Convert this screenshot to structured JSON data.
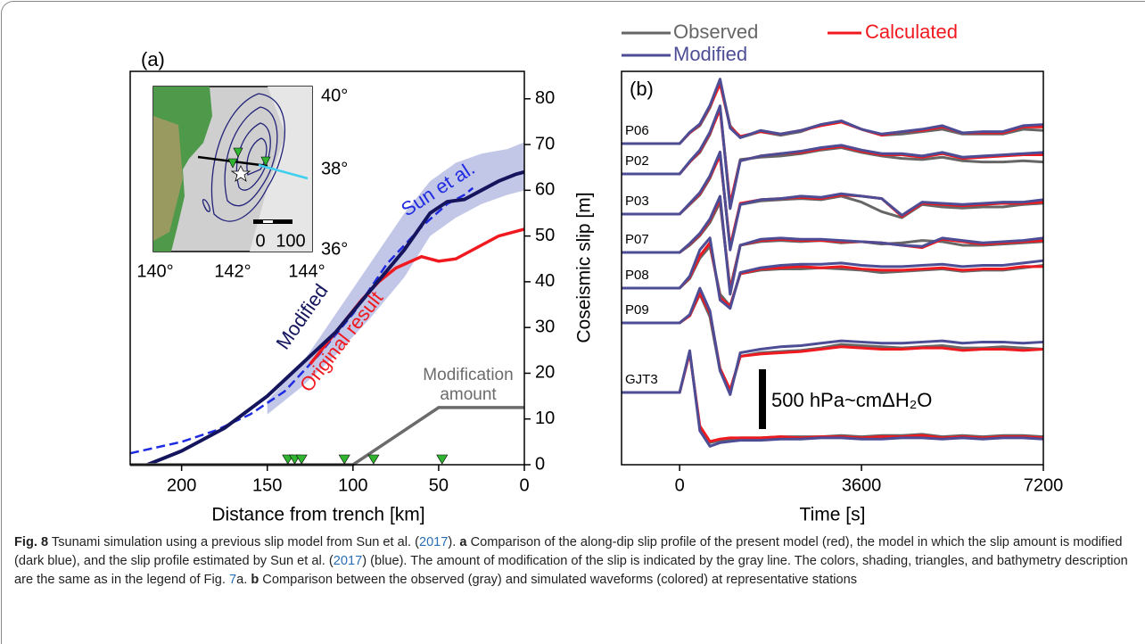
{
  "chart_data": [
    {
      "type": "line",
      "panel_label": "(a)",
      "x_label": "Distance from trench [km]",
      "y_label": "Coseismic slip [m]",
      "xlim": [
        230,
        0
      ],
      "ylim": [
        0,
        86
      ],
      "xticks": [
        200,
        150,
        100,
        50,
        0
      ],
      "yticks": [
        0,
        10,
        20,
        30,
        40,
        50,
        60,
        70,
        80
      ],
      "band": {
        "color": "#b9bde3",
        "x": [
          150,
          130,
          110,
          90,
          70,
          55,
          40,
          25,
          10,
          0
        ],
        "upper": [
          14,
          22,
          33,
          44,
          55,
          62,
          66,
          68,
          69,
          70.5
        ],
        "lower": [
          11,
          17,
          24,
          32,
          41,
          50,
          54,
          57,
          59,
          60
        ]
      },
      "series": [
        {
          "name": "Sun et al.",
          "color": "#1f2be0",
          "dashed": true,
          "x": [
            230,
            200,
            180,
            160,
            140,
            120,
            100,
            80,
            60,
            45,
            35,
            30
          ],
          "y": [
            2.5,
            5,
            7.5,
            11,
            16,
            24,
            33,
            44,
            52,
            57,
            59,
            60.5
          ]
        },
        {
          "name": "Original result",
          "color": "#f0191f",
          "x": [
            125,
            110,
            95,
            85,
            75,
            60,
            50,
            40,
            30,
            15,
            0
          ],
          "y": [
            22,
            29,
            36,
            40,
            43,
            45.5,
            44.5,
            45,
            47,
            50,
            51.5
          ]
        },
        {
          "name": "Modified",
          "color": "#15155e",
          "x": [
            220,
            200,
            175,
            150,
            130,
            110,
            90,
            70,
            55,
            45,
            35,
            25,
            15,
            5,
            0
          ],
          "y": [
            0,
            3,
            8,
            15,
            22,
            29,
            38,
            47,
            55,
            57.5,
            58,
            60,
            62,
            63.5,
            64
          ]
        },
        {
          "name": [
            "Modification",
            "amount"
          ],
          "color": "#6b6b6b",
          "x": [
            230,
            100,
            50,
            0
          ],
          "y": [
            0,
            0,
            12.5,
            12.5
          ]
        }
      ],
      "stations_x": [
        138,
        134,
        130,
        105,
        88,
        48
      ],
      "station_color": "#2fb52f"
    },
    {
      "type": "waveform",
      "panel_label": "(b)",
      "x_label": "Time [s]",
      "xlim": [
        -1150,
        7200
      ],
      "xticks": [
        0,
        3600,
        7200
      ],
      "x": [
        -1150,
        -600,
        0,
        200,
        400,
        600,
        800,
        1000,
        1200,
        1600,
        2000,
        2400,
        2800,
        3200,
        3600,
        4000,
        4400,
        4800,
        5200,
        5600,
        6000,
        6400,
        6800,
        7200
      ],
      "stations": [
        "P06",
        "P02",
        "P03",
        "P07",
        "P08",
        "P09",
        "GJT3"
      ],
      "scale_bar": {
        "value": 500,
        "label": "500 hPa~cmΔH₂O"
      },
      "series": [
        {
          "name": "Observed",
          "color": "#666666",
          "traces": [
            [
              0,
              0,
              0,
              90,
              150,
              300,
              520,
              150,
              50,
              100,
              70,
              100,
              160,
              190,
              120,
              70,
              80,
              100,
              120,
              80,
              80,
              80,
              120,
              110
            ],
            [
              0,
              0,
              0,
              100,
              180,
              330,
              560,
              -260,
              120,
              140,
              150,
              170,
              200,
              220,
              180,
              150,
              130,
              120,
              140,
              110,
              100,
              100,
              110,
              100
            ],
            [
              0,
              0,
              0,
              80,
              160,
              300,
              500,
              -280,
              80,
              110,
              120,
              130,
              120,
              150,
              100,
              20,
              -30,
              80,
              60,
              50,
              60,
              60,
              80,
              90
            ],
            [
              0,
              0,
              0,
              60,
              140,
              250,
              420,
              -300,
              60,
              90,
              100,
              90,
              100,
              80,
              90,
              70,
              80,
              100,
              90,
              60,
              60,
              70,
              80,
              90
            ],
            [
              0,
              0,
              0,
              80,
              250,
              350,
              -50,
              -150,
              120,
              150,
              160,
              160,
              170,
              160,
              150,
              130,
              140,
              150,
              160,
              140,
              150,
              150,
              170,
              190
            ],
            [
              0,
              0,
              0,
              60,
              240,
              50,
              -400,
              -580,
              -280,
              -250,
              -240,
              -230,
              -210,
              -180,
              -190,
              -200,
              -210,
              -200,
              -190,
              -210,
              -210,
              -200,
              -210,
              -220
            ],
            [
              0,
              0,
              0,
              340,
              -300,
              -420,
              -400,
              -390,
              -380,
              -380,
              -370,
              -370,
              -370,
              -360,
              -370,
              -360,
              -360,
              -350,
              -370,
              -360,
              -370,
              -360,
              -360,
              -370
            ]
          ]
        },
        {
          "name": "Calculated",
          "color": "#f0191f",
          "traces": [
            [
              0,
              0,
              0,
              90,
              160,
              310,
              500,
              140,
              60,
              100,
              80,
              110,
              150,
              180,
              120,
              70,
              100,
              110,
              140,
              90,
              90,
              90,
              140,
              140
            ],
            [
              0,
              0,
              0,
              100,
              190,
              340,
              540,
              -250,
              110,
              150,
              170,
              180,
              210,
              230,
              190,
              160,
              160,
              140,
              170,
              130,
              140,
              150,
              160,
              160
            ],
            [
              0,
              0,
              0,
              85,
              170,
              310,
              490,
              -270,
              90,
              120,
              130,
              140,
              130,
              160,
              150,
              130,
              -20,
              90,
              80,
              70,
              80,
              90,
              90,
              100
            ],
            [
              0,
              0,
              0,
              70,
              150,
              270,
              450,
              -320,
              60,
              100,
              110,
              100,
              100,
              90,
              90,
              80,
              60,
              40,
              110,
              90,
              70,
              80,
              90,
              100
            ],
            [
              0,
              0,
              0,
              90,
              270,
              380,
              -80,
              -150,
              120,
              160,
              170,
              180,
              170,
              180,
              160,
              150,
              150,
              160,
              170,
              150,
              160,
              160,
              180,
              180
            ],
            [
              0,
              0,
              0,
              60,
              250,
              80,
              -380,
              -560,
              -280,
              -260,
              -250,
              -240,
              -220,
              -200,
              -210,
              -220,
              -220,
              -210,
              -210,
              -230,
              -220,
              -220,
              -230,
              -220
            ],
            [
              0,
              0,
              0,
              330,
              -280,
              -410,
              -390,
              -380,
              -380,
              -380,
              -370,
              -380,
              -370,
              -370,
              -380,
              -370,
              -370,
              -360,
              -380,
              -370,
              -380,
              -370,
              -370,
              -380
            ]
          ]
        },
        {
          "name": "Modified",
          "color": "#4d4d96",
          "traces": [
            [
              0,
              0,
              0,
              95,
              165,
              320,
              540,
              130,
              50,
              110,
              80,
              110,
              160,
              190,
              120,
              80,
              100,
              120,
              150,
              90,
              100,
              100,
              150,
              160
            ],
            [
              0,
              0,
              0,
              105,
              200,
              350,
              570,
              -290,
              110,
              150,
              170,
              190,
              220,
              240,
              200,
              170,
              170,
              150,
              180,
              140,
              150,
              160,
              170,
              180
            ],
            [
              0,
              0,
              0,
              90,
              180,
              320,
              520,
              -300,
              80,
              120,
              130,
              150,
              140,
              170,
              150,
              130,
              -10,
              100,
              90,
              80,
              90,
              100,
              100,
              120
            ],
            [
              0,
              0,
              0,
              75,
              160,
              280,
              470,
              -350,
              60,
              110,
              120,
              110,
              110,
              100,
              90,
              80,
              60,
              50,
              120,
              100,
              80,
              90,
              100,
              120
            ],
            [
              0,
              0,
              0,
              100,
              320,
              420,
              -100,
              -170,
              130,
              170,
              190,
              200,
              200,
              210,
              190,
              180,
              180,
              190,
              200,
              180,
              190,
              190,
              210,
              230
            ],
            [
              0,
              0,
              0,
              70,
              290,
              100,
              -400,
              -600,
              -250,
              -220,
              -200,
              -190,
              -170,
              -150,
              -160,
              -170,
              -170,
              -160,
              -150,
              -170,
              -160,
              -160,
              -170,
              -160
            ],
            [
              0,
              0,
              0,
              350,
              -320,
              -450,
              -420,
              -410,
              -400,
              -400,
              -390,
              -390,
              -380,
              -380,
              -390,
              -390,
              -380,
              -380,
              -390,
              -380,
              -390,
              -380,
              -380,
              -390
            ]
          ]
        }
      ]
    }
  ],
  "inset_map": {
    "lat_labels": [
      "40°",
      "38°",
      "36°"
    ],
    "lon_labels": [
      "140°",
      "142°",
      "144°"
    ],
    "scale_labels": [
      "0",
      "100"
    ]
  },
  "caption": {
    "parts": [
      "Fig. 8",
      " Tsunami simulation using a previous slip model from Sun et al. (",
      "2017",
      "). ",
      "a",
      " Comparison of the along-dip slip profile of the present model (red), the model in which the slip amount is modified (dark blue), and the slip profile estimated by Sun et al. (",
      "2017",
      ") (blue). The amount of modification of the slip is indicated by the gray line. The colors, shading, triangles, and bathymetry description are the same as in the legend of Fig. ",
      "7",
      "a. ",
      "b",
      " Comparison between the observed (gray) and simulated waveforms (colored) at representative stations"
    ]
  }
}
